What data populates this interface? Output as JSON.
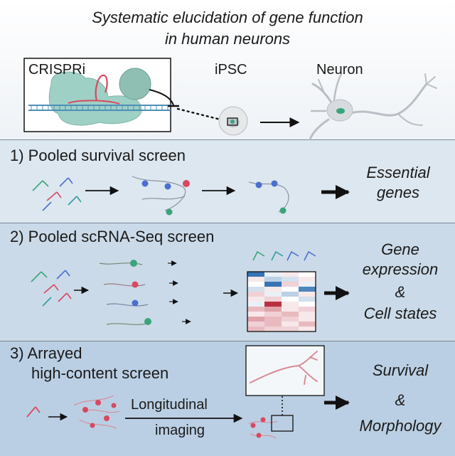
{
  "title": {
    "line1": "Systematic elucidation of gene function",
    "line2": "in human neurons"
  },
  "top": {
    "crispri_label": "CRISPRi",
    "ipsc_label": "iPSC",
    "neuron_label": "Neuron"
  },
  "screens": [
    {
      "heading": "1) Pooled survival screen",
      "result_line1": "Essential",
      "result_line2": "genes"
    },
    {
      "heading": "2) Pooled scRNA-Seq screen",
      "result_line1": "Gene",
      "result_line2": "expression",
      "result_line3": "&",
      "result_line4": "Cell states"
    },
    {
      "heading_line1": "3) Arrayed",
      "heading_line2": "high-content screen",
      "step_line1": "Longitudinal",
      "step_line2": "imaging",
      "result_line1": "Survival",
      "result_line2": "&",
      "result_line3": "Morphology"
    }
  ],
  "colors": {
    "guide_red": "#d9485f",
    "guide_green": "#3aa57a",
    "guide_blue": "#4a6fd1",
    "guide_teal": "#2f9e9e",
    "dcas9": "#9fd0c6",
    "heatmap_high": "#b2182b",
    "heatmap_low": "#2166ac"
  },
  "heatmap": {
    "rows": [
      [
        -0.9,
        -0.1,
        0.1,
        0.0
      ],
      [
        0.1,
        -0.3,
        -0.2,
        0.1
      ],
      [
        0.0,
        -0.9,
        0.2,
        -0.1
      ],
      [
        -0.2,
        0.1,
        0.0,
        -0.8
      ],
      [
        0.2,
        -0.1,
        -0.3,
        0.1
      ],
      [
        0.1,
        0.2,
        0.0,
        -0.2
      ],
      [
        -0.1,
        0.9,
        0.1,
        0.0
      ],
      [
        0.3,
        0.4,
        0.1,
        0.2
      ],
      [
        0.1,
        0.2,
        0.3,
        0.1
      ],
      [
        0.4,
        0.3,
        0.2,
        0.1
      ],
      [
        0.2,
        0.3,
        0.1,
        0.3
      ],
      [
        0.3,
        0.2,
        0.2,
        0.1
      ]
    ]
  }
}
